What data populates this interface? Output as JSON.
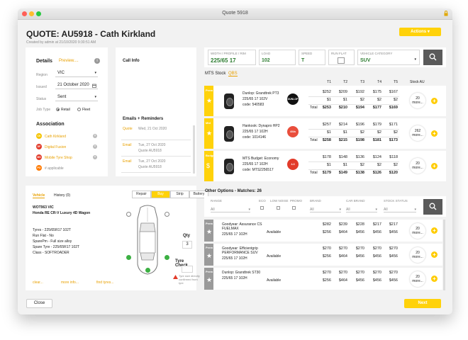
{
  "window": {
    "title": "Quote 5918"
  },
  "header": {
    "quote_title": "QUOTE: AU5918 - Cath  Kirkland",
    "created_by": "Created by admin at 21/10/2020 9:30:51 AM",
    "actions_label": "Actions"
  },
  "details": {
    "heading": "Details",
    "preview": "Preview....",
    "region_label": "Region",
    "region_value": "VIC",
    "issued_label": "Issued",
    "issued_value": "21 October 2020",
    "status_label": "Status",
    "status_value": "Sent",
    "jobtype_label": "Job Type",
    "retail": "Retail",
    "fleet": "Fleet"
  },
  "association": {
    "heading": "Association",
    "items": [
      {
        "badge": "CK",
        "label": "Cath Kirkland",
        "color": "#f5c400"
      },
      {
        "badge": "DF",
        "label": "Digital Fusion",
        "color": "#e23b2a"
      },
      {
        "badge": "MS",
        "label": "Mobile Tyre Shop",
        "color": "#e23b2a"
      },
      {
        "badge": "PO",
        "label": "# applicable",
        "color": "#ff7a00"
      }
    ]
  },
  "call_info": {
    "heading": "Call Info"
  },
  "emails": {
    "heading": "Emails + Reminders",
    "items": [
      {
        "type": "Quote",
        "date": "Wed, 21 Oct 2020",
        "sub": ""
      },
      {
        "type": "Email",
        "date": "Tue, 27 Oct 2020",
        "sub": "Quote AU5918"
      },
      {
        "type": "Email",
        "date": "Tue, 27 Oct 2020",
        "sub": "Quote AU5918"
      }
    ]
  },
  "vehicle": {
    "tab_vehicle": "Vehicle",
    "tab_history": "History (0)",
    "mode_tabs": [
      "Repair",
      "Buy",
      "Strip",
      "Battery"
    ],
    "rego": "WOT963 VIC",
    "model": "Honda RE CR-V Luxury 4D Wagon",
    "specs": [
      "Tyres - 225/65R17 102T",
      "Run Flat - No",
      "SparePm - Full size alloy",
      "Spare Tyre - 225/65R17 102T",
      "Class - SOFTROADER"
    ],
    "qty_label": "Qty",
    "qty_value": "3",
    "tyre_check": "Tyre Check",
    "tyre_note": "Tyre size directly confirmed from tyre",
    "clear": "clear...",
    "more_info": "more info...",
    "find_tyres": "find tyres..."
  },
  "search": {
    "width_label": "WIDTH / PROFILE / RIM",
    "width_value": "225/65 17",
    "load_label": "LOAD",
    "load_value": "102",
    "speed_label": "SPEED",
    "speed_value": "T",
    "runflat_label": "RUN FLAT",
    "category_label": "VEHICLE CATEGORY",
    "category_value": "SUV"
  },
  "stock_tabs": {
    "mts": "MTS Stock",
    "qbs": "QBS"
  },
  "columns": [
    "T1",
    "T2",
    "T3",
    "T4",
    "T5",
    "Stock AU"
  ],
  "products": [
    {
      "tier": "Prem",
      "name": "Dunlop: Grandtrek PT3",
      "size": "225/65 17 102V",
      "code": "code: 540583",
      "rows": [
        [
          "$252",
          "$209",
          "$192",
          "$175",
          "$167"
        ],
        [
          "$1",
          "$1",
          "$2",
          "$2",
          "$2"
        ],
        [
          "$253",
          "$210",
          "$194",
          "$177",
          "$169"
        ]
      ],
      "total": "Total",
      "more": "20 more...",
      "brand_badge": "DUNLOP",
      "brand_color": "#111111"
    },
    {
      "tier": "Mid",
      "name": "Hankook: Dynapro HP2",
      "size": "225/65 17 102H",
      "code": "code: 1014146",
      "rows": [
        [
          "$257",
          "$214",
          "$196",
          "$179",
          "$171"
        ],
        [
          "$1",
          "$1",
          "$2",
          "$2",
          "$2"
        ],
        [
          "$258",
          "$215",
          "$198",
          "$181",
          "$173"
        ]
      ],
      "total": "Total",
      "more": "262 more...",
      "brand_badge": "4X4s",
      "brand_color": "#e94e3c"
    },
    {
      "tier": "Budget",
      "name": "MTS Budget: Economy",
      "size": "225/65 17 102H",
      "code": "code: MTS2256517",
      "rows": [
        [
          "$178",
          "$148",
          "$136",
          "$124",
          "$118"
        ],
        [
          "$1",
          "$1",
          "$2",
          "$2",
          "$2"
        ],
        [
          "$179",
          "$149",
          "$138",
          "$126",
          "$120"
        ]
      ],
      "total": "Total",
      "more": "20 more...",
      "brand_badge": "4-3",
      "brand_color": "#e23b2a"
    }
  ],
  "other_options": {
    "heading": "Other Options - Matches: 26",
    "filters": {
      "range": "RANGE",
      "range_value": "All",
      "eco": "ECO",
      "low_noise": "LOW NOISE",
      "promo": "PROMO",
      "brand": "BRAND",
      "brand_value": "All",
      "car_brand": "CAR BRAND",
      "car_brand_value": "All",
      "stock_status": "STOCK STATUS",
      "stock_status_value": "All"
    },
    "items": [
      {
        "tier": "Prem",
        "name": "Goodyear: Assurance CS FUELMAX",
        "size": "225/65 17 102H",
        "status": "Available",
        "prices": [
          "$282",
          "$239",
          "$228",
          "$217",
          "$217"
        ],
        "more": "20 more..."
      },
      {
        "tier": "Prem",
        "name": "Goodyear: Efficientgrip PERFORMANCE SUV",
        "size": "225/65 17 102H",
        "status": "Available",
        "prices": [
          "$270",
          "$270",
          "$270",
          "$270",
          "$270"
        ],
        "more": "20 more..."
      },
      {
        "tier": "Prem",
        "name": "Dunlop: Grandtrek ST30",
        "size": "225/65 17 102H",
        "status": "Available",
        "prices": [
          "$270",
          "$270",
          "$270",
          "$270",
          "$270"
        ],
        "more": "20 more..."
      }
    ],
    "sub_prices": [
      "$256",
      "$464",
      "$456",
      "$456",
      "$456"
    ]
  },
  "footer": {
    "close": "Close",
    "next": "Next"
  },
  "colors": {
    "accent": "#ffd20a",
    "danger": "#e23b2a",
    "success": "#3cb043"
  }
}
